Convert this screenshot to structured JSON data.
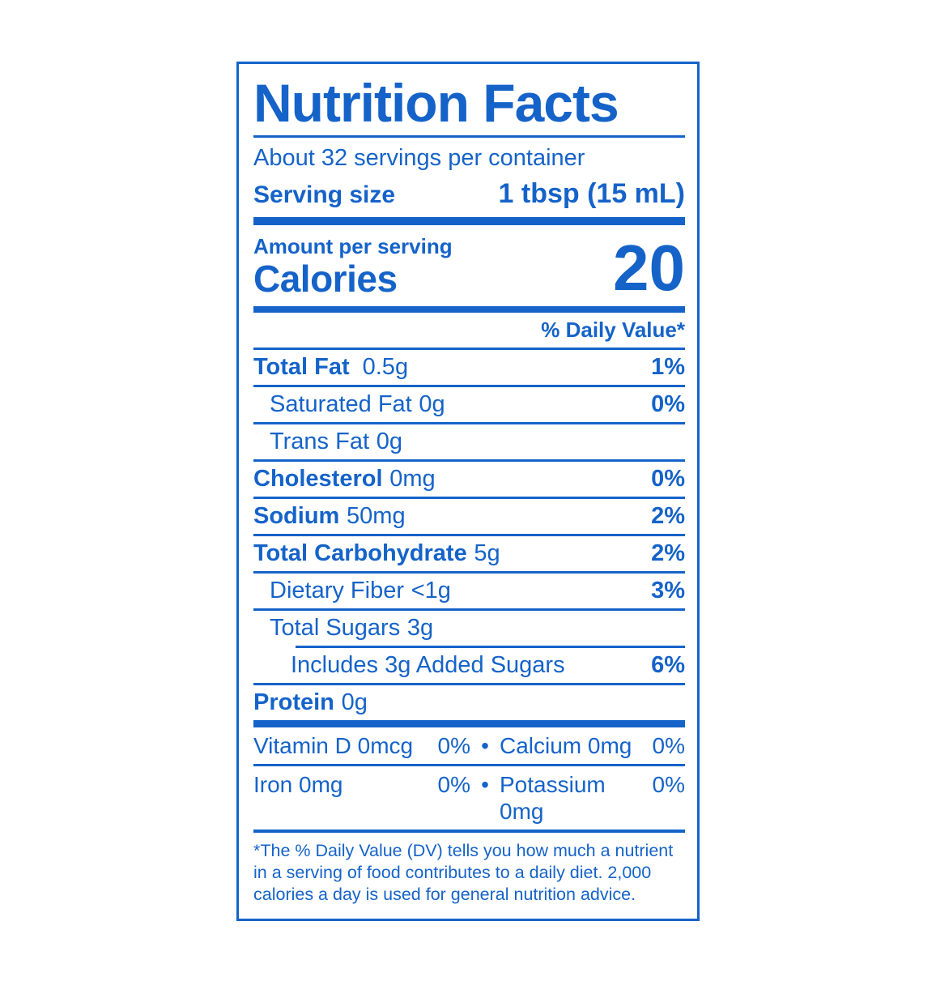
{
  "label": {
    "title": "Nutrition Facts",
    "servings_per_container": "About 32 servings per container",
    "serving_size_label": "Serving size",
    "serving_size_value": "1 tbsp (15 mL)",
    "amount_per_serving": "Amount per serving",
    "calories_label": "Calories",
    "calories_value": "20",
    "daily_value_header": "% Daily Value*",
    "nutrients": [
      {
        "name": "Total Fat",
        "amount": "0.5g",
        "dv": "1%"
      },
      {
        "name": "Saturated Fat",
        "amount": "0g",
        "dv": "0%"
      },
      {
        "name": "Trans Fat",
        "amount": "0g",
        "dv": ""
      },
      {
        "name": "Cholesterol",
        "amount": "0mg",
        "dv": "0%"
      },
      {
        "name": "Sodium",
        "amount": "50mg",
        "dv": "2%"
      },
      {
        "name": "Total Carbohydrate",
        "amount": "5g",
        "dv": "2%"
      },
      {
        "name": "Dietary Fiber",
        "amount": "<1g",
        "dv": "3%"
      },
      {
        "name": "Total Sugars",
        "amount": "3g",
        "dv": ""
      },
      {
        "name": "Includes 3g Added Sugars",
        "amount": "",
        "dv": "6%"
      },
      {
        "name": "Protein",
        "amount": "0g",
        "dv": ""
      }
    ],
    "micro_separator": "•",
    "micronutrients": [
      {
        "left_name": "Vitamin D 0mcg",
        "left_dv": "0%",
        "right_name": "Calcium 0mg",
        "right_dv": "0%"
      },
      {
        "left_name": "Iron 0mg",
        "left_dv": "0%",
        "right_name": "Potassium 0mg",
        "right_dv": "0%"
      }
    ],
    "footnote": "*The % Daily Value (DV) tells you how much a nutrient in a serving of food contributes to a daily diet. 2,000 calories a day is used for general nutrition advice.",
    "colors": {
      "blue": "#1563c9",
      "background": "#ffffff"
    }
  }
}
